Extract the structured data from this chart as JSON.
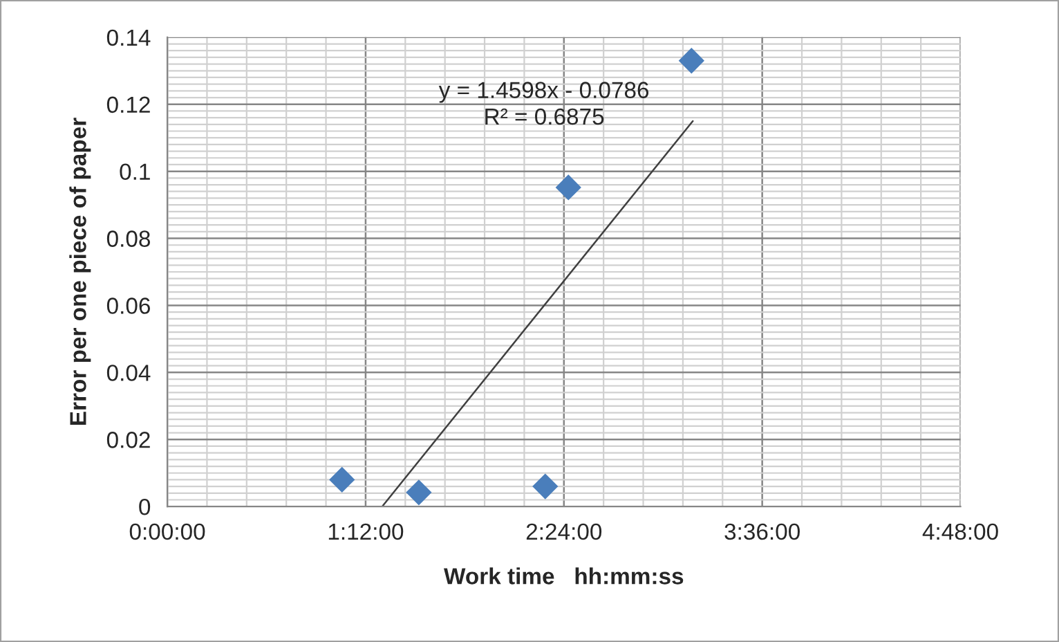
{
  "chart_data": {
    "type": "scatter",
    "xlabel": "Work time   hh:mm:ss",
    "ylabel": "Error per one piece of paper",
    "series": [
      {
        "color": "#4a7ebb",
        "marker": "diamond",
        "x": [
          1.057,
          1.522,
          2.287,
          2.427,
          3.172
        ],
        "values": [
          0.008,
          0.0042,
          0.006,
          0.0952,
          0.133
        ]
      },
      {
        "type": "line",
        "color": "#404040",
        "marker": "none",
        "x": [
          1.3,
          3.18
        ],
        "values": [
          0,
          0.115
        ]
      }
    ],
    "xlim": [
      0,
      4.8
    ],
    "xticks": [
      {
        "value": 0,
        "label": "0:00:00"
      },
      {
        "value": 1.2,
        "label": "1:12:00"
      },
      {
        "value": 2.4,
        "label": "2:24:00"
      },
      {
        "value": 3.6,
        "label": "3:36:00"
      },
      {
        "value": 4.8,
        "label": "4:48:00"
      }
    ],
    "ylim": [
      0,
      0.14
    ],
    "yticks": [
      0,
      0.02,
      0.04,
      0.06,
      0.08,
      0.1,
      0.12,
      0.14
    ],
    "grid": true,
    "legend": false,
    "annotations": [
      "y = 1.4598x - 0.0786\nR² = 0.6875"
    ]
  }
}
